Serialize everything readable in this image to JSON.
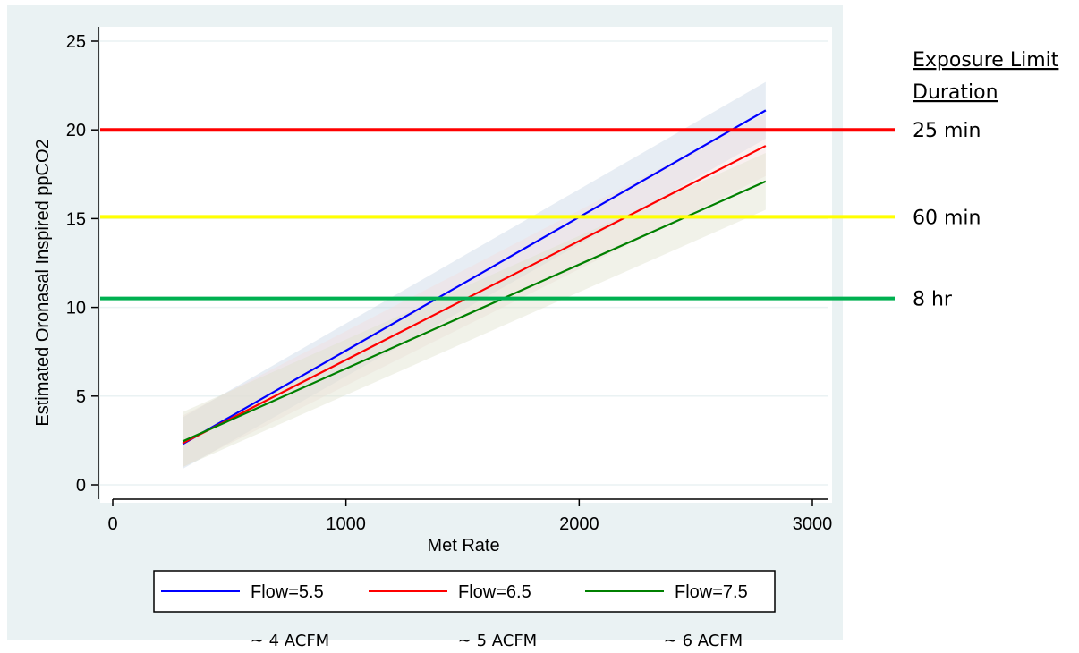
{
  "chart_data": {
    "type": "line",
    "title": "",
    "xlabel": "Met Rate",
    "ylabel": "Estimated Oronasal Inspired ppCO2",
    "xlim": [
      -50,
      3060
    ],
    "ylim": [
      -0.3,
      25.3
    ],
    "x_ticks": [
      0,
      1000,
      2000,
      3000
    ],
    "x_tick_labels": [
      "0",
      "1000",
      "2000",
      "3000"
    ],
    "y_ticks": [
      0,
      5,
      10,
      15,
      20,
      25
    ],
    "y_tick_labels": [
      "0",
      "5",
      "10",
      "15",
      "20",
      "25"
    ],
    "grid": true,
    "legend_position": "bottom",
    "series": [
      {
        "name": "Flow=5.5",
        "color": "#0000ff",
        "x": [
          300,
          2800
        ],
        "y": [
          2.3,
          21.1
        ],
        "ci_lower": [
          0.9,
          19.5
        ],
        "ci_upper": [
          3.8,
          22.7
        ]
      },
      {
        "name": "Flow=6.5",
        "color": "#ff0000",
        "x": [
          300,
          2800
        ],
        "y": [
          2.35,
          19.1
        ],
        "ci_lower": [
          1.0,
          17.4
        ],
        "ci_upper": [
          3.9,
          20.9
        ]
      },
      {
        "name": "Flow=7.5",
        "color": "#008000",
        "x": [
          300,
          2800
        ],
        "y": [
          2.45,
          17.1
        ],
        "ci_lower": [
          1.0,
          15.5
        ],
        "ci_upper": [
          4.1,
          18.7
        ]
      }
    ],
    "reference_lines": [
      {
        "y": 20,
        "color": "#ff0000",
        "label": "25 min"
      },
      {
        "y": 15.1,
        "color": "#ffff00",
        "label": "60 min"
      },
      {
        "y": 10.5,
        "color": "#00b050",
        "label": "8 hr"
      }
    ]
  },
  "annotations": {
    "exposure_title_line1": "Exposure Limit",
    "exposure_title_line2": "Duration",
    "acfm_labels": [
      "~ 4 ACFM",
      "~ 5 ACFM",
      "~ 6 ACFM"
    ]
  },
  "colors": {
    "panel_background": "#eaf2f3",
    "band_blue": "#c9d6e6",
    "band_red": "#f2dede",
    "band_green": "#dfe3cf"
  }
}
